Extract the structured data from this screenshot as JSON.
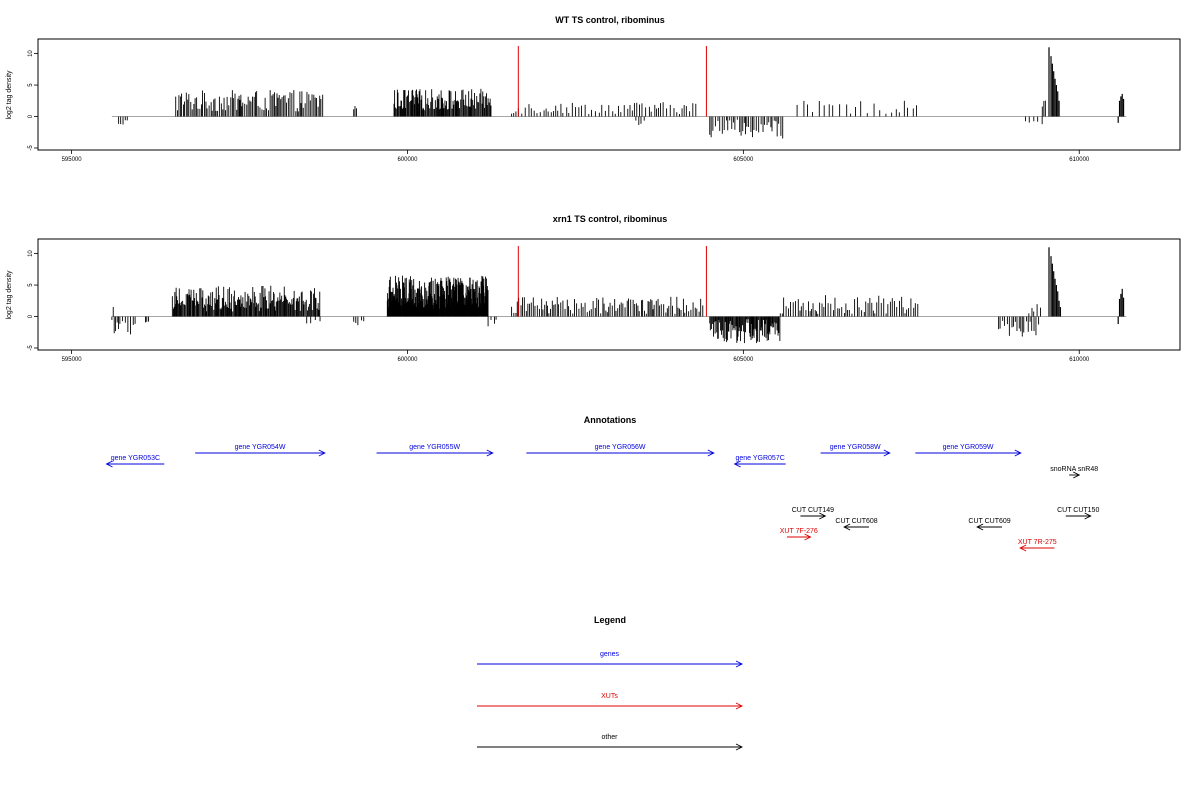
{
  "chart_data": [
    {
      "type": "bar",
      "title": "WT TS control, ribominus",
      "ylabel": "log2 tag density",
      "xlim": [
        594500,
        611500
      ],
      "ylim": [
        -5,
        12
      ],
      "x_ticks": [
        595000,
        600000,
        605000,
        610000
      ],
      "x_tick_labels": [
        "595000",
        "600000",
        "605000",
        "610000"
      ],
      "y_ticks": [
        -5,
        0,
        5,
        10
      ],
      "y_tick_labels": [
        "-5",
        "0",
        "5",
        "10"
      ],
      "baseline": [
        595600,
        610700
      ],
      "markers": {
        "color": "#dd0000",
        "positions": [
          601650,
          604450
        ],
        "height": 11.2
      },
      "segments": [
        {
          "start": 595700,
          "end": 595850,
          "min": 0.3,
          "max": 1.5,
          "sign": -1,
          "step": 40
        },
        {
          "start": 596550,
          "end": 598750,
          "min": 0.8,
          "max": 4.2,
          "sign": 1,
          "step": 22
        },
        {
          "start": 599200,
          "end": 599250,
          "min": 1.0,
          "max": 2.0,
          "sign": 1,
          "step": 20
        },
        {
          "start": 599800,
          "end": 601250,
          "min": 1.0,
          "max": 4.4,
          "sign": 1,
          "step": 13
        },
        {
          "start": 601550,
          "end": 604300,
          "min": 0.4,
          "max": 2.3,
          "sign": 1,
          "step": 42
        },
        {
          "start": 603400,
          "end": 603550,
          "min": 0.5,
          "max": 1.6,
          "sign": -1,
          "step": 50
        },
        {
          "start": 604500,
          "end": 605600,
          "min": 0.5,
          "max": 3.5,
          "sign": -1,
          "step": 28
        },
        {
          "start": 605800,
          "end": 607600,
          "min": 0.4,
          "max": 2.5,
          "sign": 1,
          "step": 75
        },
        {
          "start": 609200,
          "end": 609450,
          "min": 0.5,
          "max": 2.0,
          "sign": -1,
          "step": 60
        },
        {
          "start": 609450,
          "end": 609500,
          "min": 1.5,
          "max": 3.0,
          "sign": 1,
          "step": 20
        }
      ],
      "peaks": [
        {
          "x": 609550,
          "y": 11.0
        },
        {
          "x": 609580,
          "y": 9.6
        },
        {
          "x": 609600,
          "y": 8.4
        },
        {
          "x": 609620,
          "y": 7.2
        },
        {
          "x": 609640,
          "y": 6.0
        },
        {
          "x": 609660,
          "y": 5.0
        },
        {
          "x": 609680,
          "y": 4.0
        },
        {
          "x": 609700,
          "y": 2.5
        },
        {
          "x": 610600,
          "y": 2.5
        },
        {
          "x": 610620,
          "y": 3.2
        },
        {
          "x": 610640,
          "y": 3.6
        },
        {
          "x": 610660,
          "y": 2.8
        },
        {
          "x": 610580,
          "y": -1.0
        }
      ]
    },
    {
      "type": "bar",
      "title": "xrn1 TS control, ribominus",
      "ylabel": "log2 tag density",
      "xlim": [
        594500,
        611500
      ],
      "ylim": [
        -5,
        12
      ],
      "x_ticks": [
        595000,
        600000,
        605000,
        610000
      ],
      "x_tick_labels": [
        "595000",
        "600000",
        "605000",
        "610000"
      ],
      "y_ticks": [
        -5,
        0,
        5,
        10
      ],
      "y_tick_labels": [
        "-5",
        "0",
        "5",
        "10"
      ],
      "baseline": [
        595600,
        610700
      ],
      "markers": {
        "color": "#dd0000",
        "positions": [
          601650,
          604450
        ],
        "height": 11.2
      },
      "segments": [
        {
          "start": 595600,
          "end": 595950,
          "min": 0.5,
          "max": 3.3,
          "sign": -1,
          "step": 30
        },
        {
          "start": 595620,
          "end": 595640,
          "min": 1.5,
          "max": 1.6,
          "sign": 1,
          "step": 20
        },
        {
          "start": 596100,
          "end": 596150,
          "min": 0.8,
          "max": 1.4,
          "sign": -1,
          "step": 25
        },
        {
          "start": 596500,
          "end": 598700,
          "min": 0.8,
          "max": 4.9,
          "sign": 1,
          "step": 13
        },
        {
          "start": 598500,
          "end": 598700,
          "min": 0.5,
          "max": 2.0,
          "sign": -1,
          "step": 60
        },
        {
          "start": 599200,
          "end": 599350,
          "min": 0.5,
          "max": 1.5,
          "sign": -1,
          "step": 40
        },
        {
          "start": 599700,
          "end": 601200,
          "min": 1.2,
          "max": 6.5,
          "sign": 1,
          "step": 6
        },
        {
          "start": 601200,
          "end": 601350,
          "min": 0.5,
          "max": 1.6,
          "sign": -1,
          "step": 40
        },
        {
          "start": 601550,
          "end": 604400,
          "min": 0.4,
          "max": 3.2,
          "sign": 1,
          "step": 26
        },
        {
          "start": 604500,
          "end": 605550,
          "min": 0.4,
          "max": 4.5,
          "sign": -1,
          "step": 12
        },
        {
          "start": 605550,
          "end": 607600,
          "min": 0.4,
          "max": 3.4,
          "sign": 1,
          "step": 30
        },
        {
          "start": 608800,
          "end": 609400,
          "min": 0.4,
          "max": 3.2,
          "sign": -1,
          "step": 30
        },
        {
          "start": 609250,
          "end": 609450,
          "min": 0.5,
          "max": 2.0,
          "sign": 1,
          "step": 40
        }
      ],
      "peaks": [
        {
          "x": 609550,
          "y": 11.0
        },
        {
          "x": 609580,
          "y": 9.6
        },
        {
          "x": 609600,
          "y": 8.4
        },
        {
          "x": 609620,
          "y": 7.2
        },
        {
          "x": 609640,
          "y": 6.0
        },
        {
          "x": 609660,
          "y": 5.0
        },
        {
          "x": 609680,
          "y": 4.0
        },
        {
          "x": 609700,
          "y": 2.5
        },
        {
          "x": 609720,
          "y": 1.5
        },
        {
          "x": 610600,
          "y": 2.8
        },
        {
          "x": 610620,
          "y": 3.6
        },
        {
          "x": 610640,
          "y": 4.4
        },
        {
          "x": 610660,
          "y": 3.0
        },
        {
          "x": 610580,
          "y": -1.2
        }
      ]
    }
  ],
  "annotations": {
    "title": "Annotations",
    "colors": {
      "gene": "#0000dd",
      "xut": "#dd0000",
      "other": "#000000"
    },
    "features": [
      {
        "label": "gene YGR053C",
        "kind": "gene",
        "strand": "-",
        "start": 595520,
        "end": 596380,
        "row": 1
      },
      {
        "label": "gene YGR054W",
        "kind": "gene",
        "strand": "+",
        "start": 596840,
        "end": 598770,
        "row": 0
      },
      {
        "label": "gene YGR055W",
        "kind": "gene",
        "strand": "+",
        "start": 599540,
        "end": 601270,
        "row": 0
      },
      {
        "label": "gene YGR056W",
        "kind": "gene",
        "strand": "+",
        "start": 601770,
        "end": 604560,
        "row": 0
      },
      {
        "label": "gene YGR057C",
        "kind": "gene",
        "strand": "-",
        "start": 604870,
        "end": 605630,
        "row": 1
      },
      {
        "label": "gene YGR058W",
        "kind": "gene",
        "strand": "+",
        "start": 606150,
        "end": 607180,
        "row": 0
      },
      {
        "label": "gene YGR059W",
        "kind": "gene",
        "strand": "+",
        "start": 607560,
        "end": 609130,
        "row": 0
      },
      {
        "label": "snoRNA snR48",
        "kind": "other",
        "strand": "+",
        "start": 609850,
        "end": 610000,
        "row": 2
      },
      {
        "label": "CUT CUT149",
        "kind": "other",
        "strand": "+",
        "start": 605850,
        "end": 606220,
        "row": 4
      },
      {
        "label": "CUT CUT608",
        "kind": "other",
        "strand": "-",
        "start": 606500,
        "end": 606870,
        "row": 5
      },
      {
        "label": "CUT CUT609",
        "kind": "other",
        "strand": "-",
        "start": 608480,
        "end": 608850,
        "row": 5
      },
      {
        "label": "CUT CUT150",
        "kind": "other",
        "strand": "+",
        "start": 609800,
        "end": 610170,
        "row": 4
      },
      {
        "label": "XUT 7F-276",
        "kind": "xut",
        "strand": "+",
        "start": 605650,
        "end": 606000,
        "row": 6
      },
      {
        "label": "XUT 7R-275",
        "kind": "xut",
        "strand": "-",
        "start": 609120,
        "end": 609630,
        "row": 7
      }
    ]
  },
  "legend": {
    "title": "Legend",
    "items": [
      {
        "label": "genes",
        "color": "#0000dd"
      },
      {
        "label": "XUTs",
        "color": "#dd0000"
      },
      {
        "label": "other",
        "color": "#000000"
      }
    ]
  }
}
